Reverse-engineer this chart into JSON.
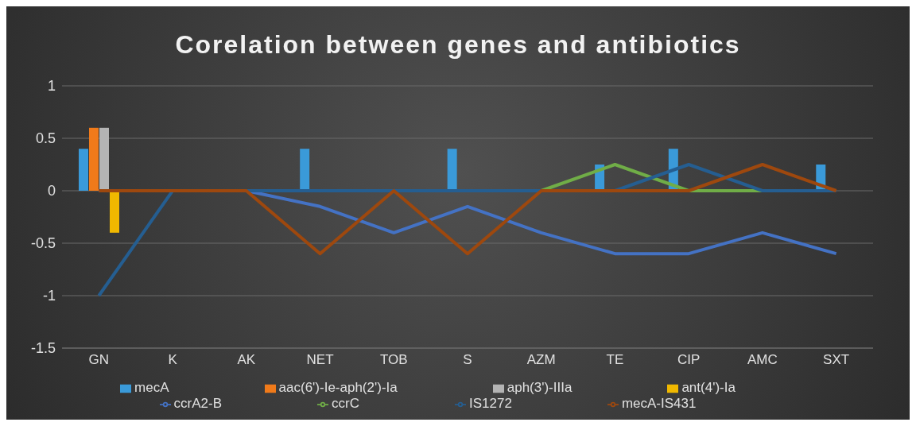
{
  "chart_data": {
    "type": "bar",
    "title": "Corelation between genes and antibiotics",
    "categories": [
      "GN",
      "K",
      "AK",
      "NET",
      "TOB",
      "S",
      "AZM",
      "TE",
      "CIP",
      "AMC",
      "SXT"
    ],
    "series": [
      {
        "name": "mecA",
        "color": "#3a9ad9",
        "values": [
          0.4,
          0,
          0,
          0.4,
          0,
          0.4,
          0,
          0.25,
          0.4,
          0,
          0.25
        ]
      },
      {
        "name": "aac(6')-Ie-aph(2')-Ia",
        "color": "#f07a1a",
        "values": [
          0.6,
          0,
          0,
          0,
          0,
          0,
          0,
          0,
          0,
          0,
          0
        ]
      },
      {
        "name": "aph(3')-IIIa",
        "color": "#b4b4b4",
        "values": [
          0.6,
          0,
          0,
          0,
          0,
          0,
          0,
          0,
          0,
          0,
          0
        ]
      },
      {
        "name": "ant(4')-Ia",
        "color": "#f0b800",
        "values": [
          -0.4,
          0,
          0,
          0,
          0,
          0,
          0,
          0,
          0,
          0,
          0
        ]
      },
      {
        "name": "ccrA2-B",
        "type": "line",
        "color": "#4472c4",
        "values": [
          0,
          0,
          0,
          -0.15,
          -0.4,
          -0.15,
          -0.4,
          -0.6,
          -0.6,
          -0.4,
          -0.6
        ]
      },
      {
        "name": "ccrC",
        "type": "line",
        "color": "#70ad47",
        "values": [
          null,
          null,
          null,
          null,
          null,
          null,
          0,
          0.25,
          0,
          0,
          null
        ]
      },
      {
        "name": "IS1272",
        "type": "line",
        "color": "#255e91",
        "values": [
          -1,
          0,
          0,
          0,
          0,
          0,
          0,
          0,
          0.25,
          0,
          0
        ]
      },
      {
        "name": "mecA-IS431",
        "type": "line",
        "color": "#9e480e",
        "values": [
          0,
          0,
          0,
          -0.6,
          0,
          -0.6,
          0,
          0,
          0,
          0.25,
          0
        ]
      }
    ],
    "ylim": [
      -1.5,
      1
    ],
    "yticks": [
      -1.5,
      -1,
      -0.5,
      0,
      0.5,
      1
    ],
    "grid": "y",
    "legend": "bottom",
    "marker": "none"
  }
}
